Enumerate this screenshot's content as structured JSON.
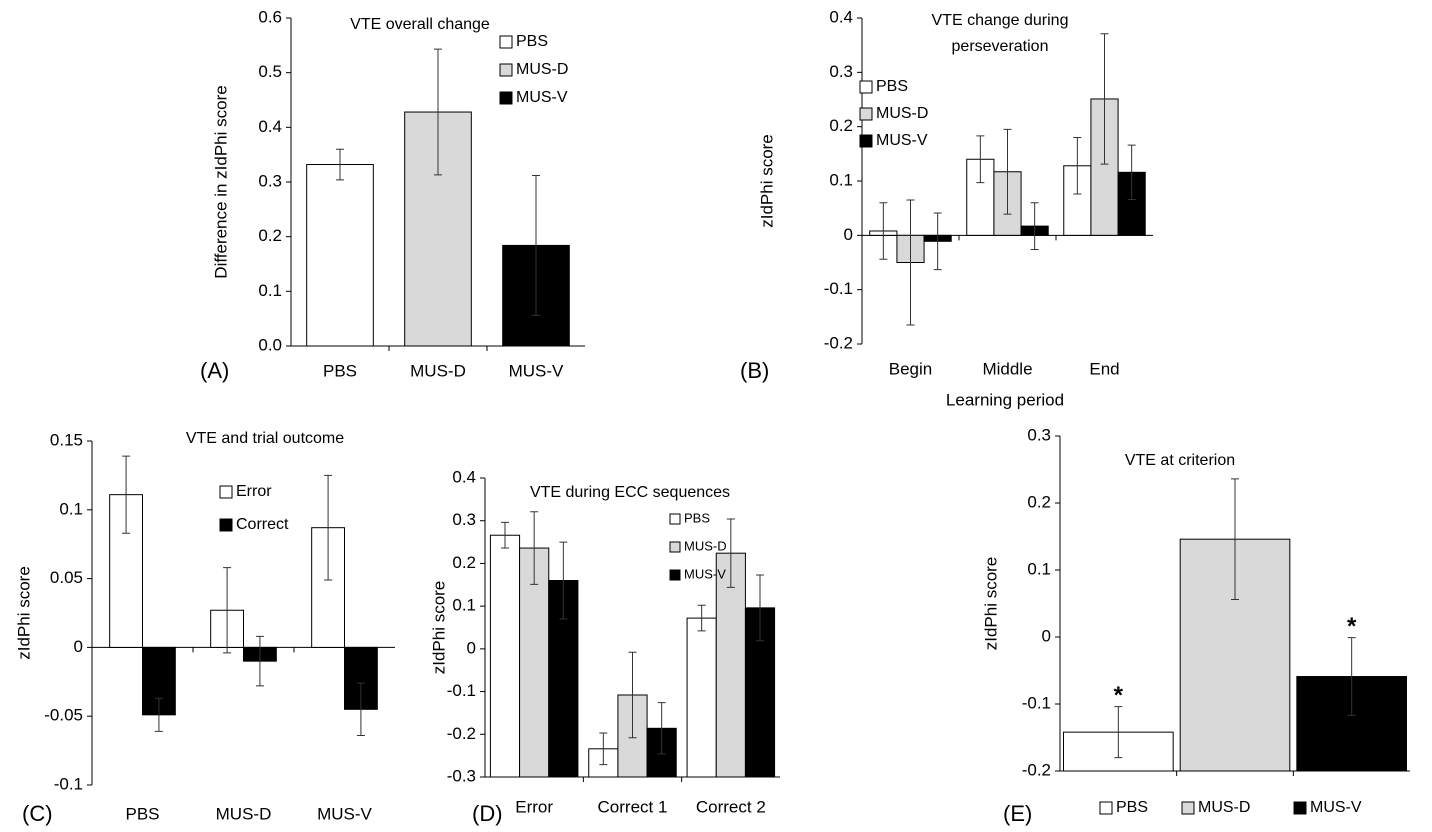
{
  "chart_data": [
    {
      "type": "bar",
      "panel_label": "(A)",
      "title": "VTE overall change",
      "y_label": "Difference in  zIdPhi score",
      "categories": [
        "PBS",
        "MUS-D",
        "MUS-V"
      ],
      "values": [
        0.332,
        0.428,
        0.184
      ],
      "errors": [
        0.028,
        0.115,
        0.128
      ],
      "colors": [
        "#ffffff",
        "#d9d9d9",
        "#000000"
      ],
      "show_categories": true,
      "legend": "upper right",
      "ylim": [
        0,
        0.6
      ],
      "yticks": [
        {
          "value": 0,
          "label": "0.0"
        },
        0.1,
        0.2,
        0.3,
        0.4,
        0.5,
        0.6
      ]
    },
    {
      "type": "bar",
      "panel_label": "(B)",
      "title": "VTE change during perseveration",
      "y_label": "zIdPhi score",
      "x_label": "Learning period",
      "categories": [
        "Begin",
        "Middle",
        "End"
      ],
      "legend": "upper left",
      "series": [
        {
          "name": "PBS",
          "color": "#ffffff",
          "values": [
            0.008,
            0.14,
            0.128
          ],
          "errors": [
            0.052,
            0.043,
            0.052
          ]
        },
        {
          "name": "MUS-D",
          "color": "#d9d9d9",
          "values": [
            -0.05,
            0.117,
            0.251
          ],
          "errors": [
            0.115,
            0.078,
            0.12
          ]
        },
        {
          "name": "MUS-V",
          "color": "#000000",
          "values": [
            -0.011,
            0.017,
            0.116
          ],
          "errors": [
            0.052,
            0.043,
            0.05
          ]
        }
      ],
      "ylim": [
        -0.2,
        0.4
      ],
      "yticks": [
        -0.2,
        -0.1,
        0,
        0.1,
        0.2,
        0.3,
        0.4
      ]
    },
    {
      "type": "bar",
      "panel_label": "(C)",
      "title": "VTE and trial outcome",
      "y_label": "zIdPhi score",
      "categories": [
        "PBS",
        "MUS-D",
        "MUS-V"
      ],
      "legend": "upper right",
      "series": [
        {
          "name": "Error",
          "color": "#ffffff",
          "values": [
            0.111,
            0.027,
            0.087
          ],
          "errors": [
            0.028,
            0.031,
            0.038
          ]
        },
        {
          "name": "Correct",
          "color": "#000000",
          "values": [
            -0.049,
            -0.01,
            -0.045
          ],
          "errors": [
            0.012,
            0.018,
            0.019
          ],
          "markers": [
            "*",
            null,
            "*"
          ]
        }
      ],
      "ylim": [
        -0.1,
        0.15
      ],
      "yticks": [
        -0.1,
        -0.05,
        0,
        0.05,
        0.1,
        0.15
      ]
    },
    {
      "type": "bar",
      "panel_label": "(D)",
      "title": "VTE during ECC sequences",
      "y_label": "zIdPhi score",
      "categories": [
        "Error",
        "Correct 1",
        "Correct 2"
      ],
      "legend": "upper right",
      "bars_from_axis_min": true,
      "series": [
        {
          "name": "PBS",
          "color": "#ffffff",
          "values": [
            0.266,
            -0.234,
            0.072
          ],
          "errors": [
            0.03,
            0.037,
            0.03
          ]
        },
        {
          "name": "MUS-D",
          "color": "#d9d9d9",
          "values": [
            0.236,
            -0.108,
            0.224
          ],
          "errors": [
            0.085,
            0.1,
            0.08
          ]
        },
        {
          "name": "MUS-V",
          "color": "#000000",
          "values": [
            0.16,
            -0.186,
            0.096
          ],
          "errors": [
            0.09,
            0.06,
            0.077
          ]
        }
      ],
      "ylim": [
        -0.3,
        0.4
      ],
      "yticks": [
        -0.3,
        -0.2,
        -0.1,
        0,
        0.1,
        0.2,
        0.3,
        0.4
      ]
    },
    {
      "type": "bar",
      "panel_label": "(E)",
      "title": "VTE at criterion",
      "y_label": "zIdPhi score",
      "categories": [
        "PBS",
        "MUS-D",
        "MUS-V"
      ],
      "values": [
        -0.142,
        0.146,
        -0.059
      ],
      "errors": [
        0.038,
        0.09,
        0.058
      ],
      "markers": [
        "*",
        null,
        "*"
      ],
      "colors": [
        "#ffffff",
        "#d9d9d9",
        "#000000"
      ],
      "show_categories": false,
      "legend": "bottom",
      "bars_from_axis_min": true,
      "ylim": [
        -0.2,
        0.3
      ],
      "yticks": [
        -0.2,
        -0.1,
        0,
        0.1,
        0.2,
        0.3
      ]
    }
  ]
}
